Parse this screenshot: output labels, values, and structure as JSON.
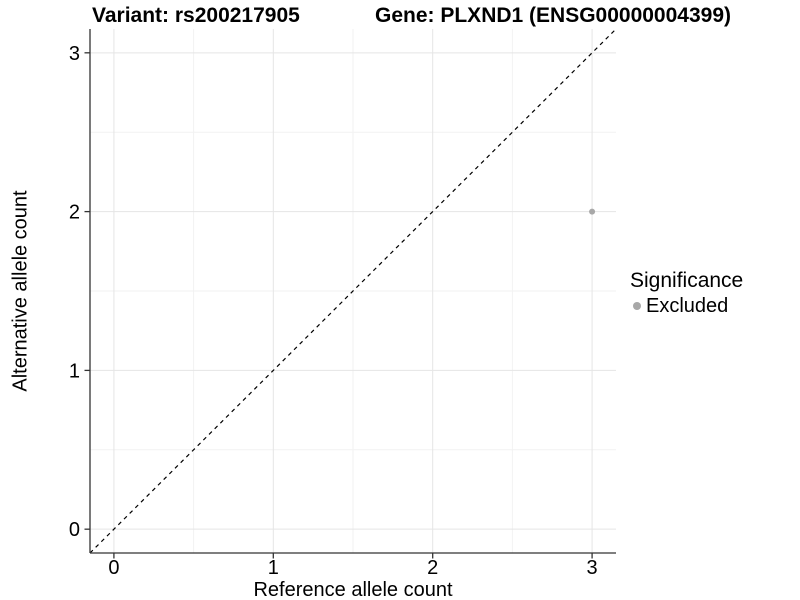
{
  "chart_data": {
    "type": "scatter",
    "title_left": "Variant: rs200217905",
    "title_right": "Gene: PLXND1 (ENSG00000004399)",
    "xlabel": "Reference allele count",
    "ylabel": "Alternative allele count",
    "x_ticks": [
      0,
      1,
      2,
      3
    ],
    "y_ticks": [
      0,
      1,
      2,
      3
    ],
    "minor_gridlines_x": [
      0.5,
      1.5,
      2.5
    ],
    "minor_gridlines_y": [
      0.5,
      1.5,
      2.5
    ],
    "xlim": [
      -0.15,
      3.15
    ],
    "ylim": [
      -0.15,
      3.15
    ],
    "grid": "on",
    "reference_line": {
      "kind": "identity y = x",
      "style": "dashed",
      "color": "#000000"
    },
    "series": [
      {
        "name": "Excluded",
        "color": "#a8a8a8",
        "points": [
          {
            "x": 3,
            "y": 2
          }
        ]
      }
    ],
    "legend": {
      "title": "Significance",
      "position": "right",
      "items": [
        {
          "label": "Excluded",
          "color": "#a8a8a8"
        }
      ]
    },
    "colors": {
      "background": "#ffffff",
      "axis_line": "#333333",
      "grid_major": "#e5e5e5",
      "grid_minor": "#f2f2f2",
      "text": "#000000",
      "point": "#a8a8a8"
    }
  }
}
